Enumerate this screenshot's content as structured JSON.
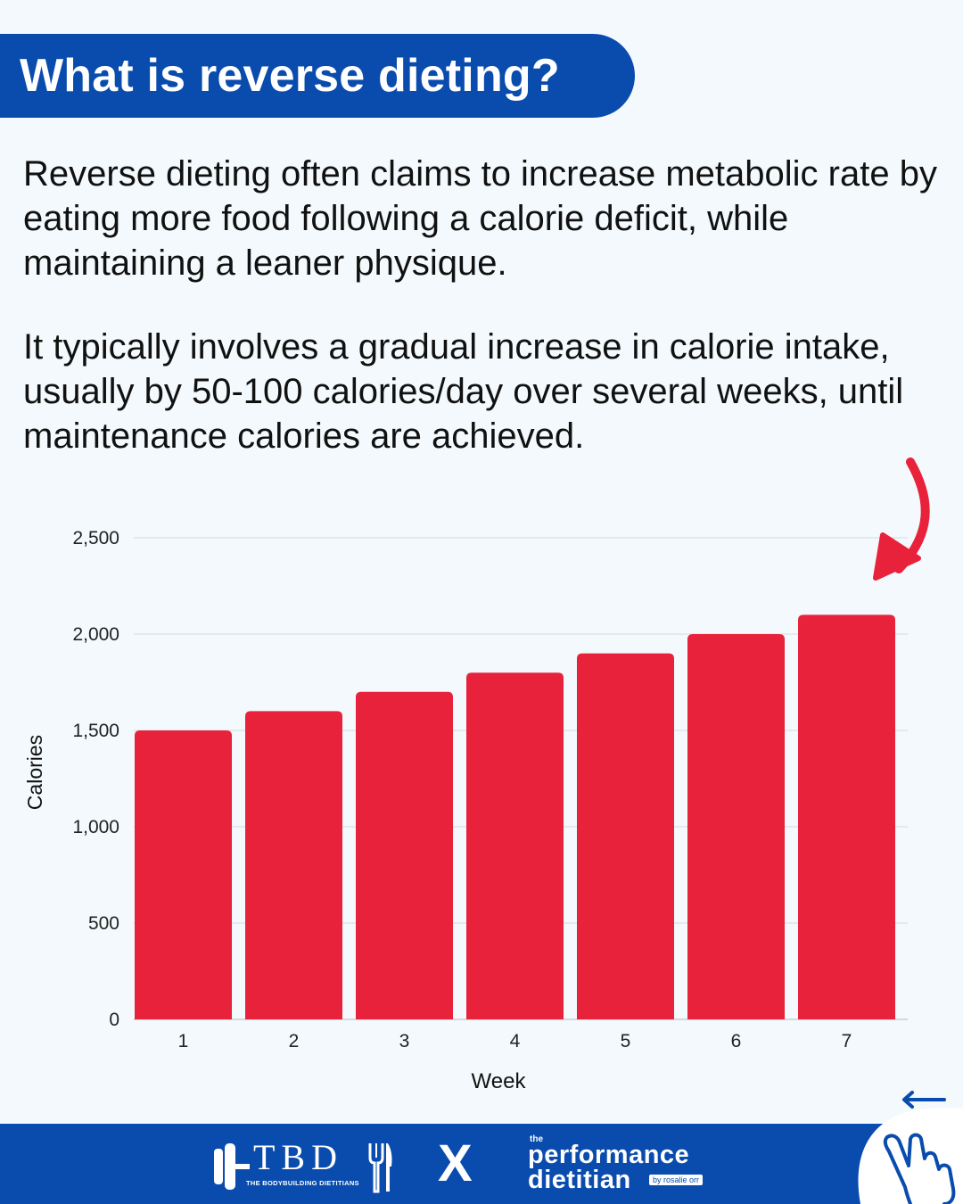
{
  "title": "What is reverse dieting?",
  "paragraphs": [
    "Reverse dieting often claims to increase metabolic rate by eating more food following a calorie deficit, while maintaining a leaner physique.",
    "It typically involves a gradual increase in calorie intake, usually by 50-100 calories/day over several weeks, until maintenance calories are achieved."
  ],
  "chart_data": {
    "type": "bar",
    "categories": [
      "1",
      "2",
      "3",
      "4",
      "5",
      "6",
      "7"
    ],
    "values": [
      1500,
      1600,
      1700,
      1800,
      1900,
      2000,
      2100
    ],
    "xlabel": "Week",
    "ylabel": "Calories",
    "ylim": [
      0,
      2500
    ],
    "yticks": [
      0,
      500,
      1000,
      1500,
      2000,
      2500
    ],
    "ytick_labels": [
      "0",
      "500",
      "1,000",
      "1,500",
      "2,000",
      "2,500"
    ],
    "grid": true,
    "bar_color": "#e8223a",
    "annotation": "red-curved-arrow-pointing-to-week-7"
  },
  "footer": {
    "logo_tbd": "TBD",
    "logo_tbd_sub": "THE BODYBUILDING DIETITIANS",
    "x_separator": "X",
    "logo_perf_the": "the",
    "logo_perf_line1": "performance",
    "logo_perf_line2": "dietitian",
    "logo_perf_by": "by rosalie orr"
  },
  "colors": {
    "brand_blue": "#0a4cad",
    "background": "#f3f9fc",
    "accent_red": "#e8223a"
  },
  "icons": [
    "barbell-icon",
    "fork-knife-icon",
    "curved-arrow-icon",
    "swipe-hand-icon",
    "left-arrow-icon"
  ]
}
